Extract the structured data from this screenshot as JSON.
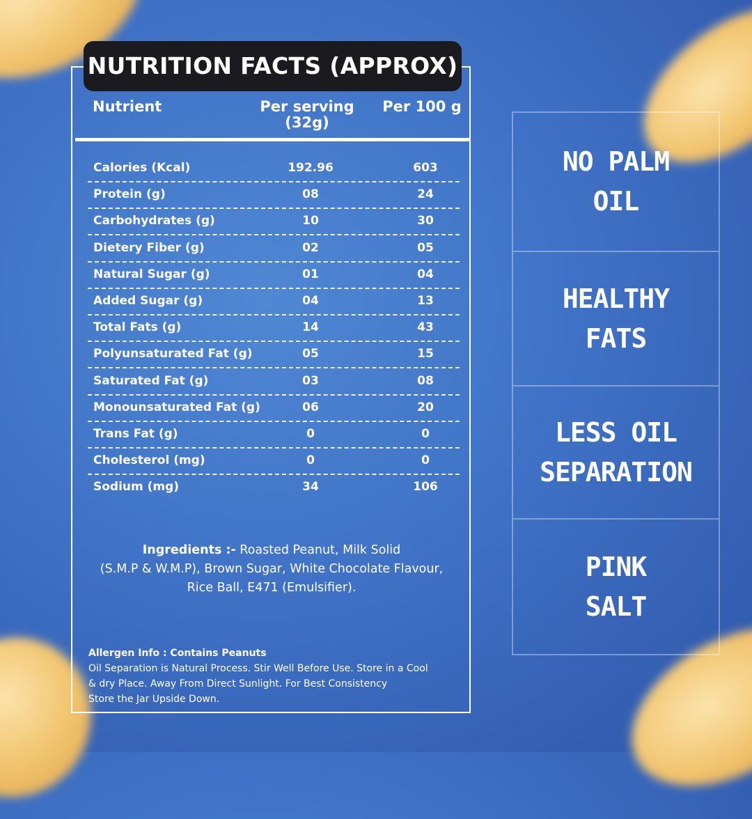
{
  "title": "NUTRITION FACTS (APPROX)",
  "table": {
    "headers": {
      "nutrient": "Nutrient",
      "per_serving_1": "Per serving",
      "per_serving_2": "(32g)",
      "per_100g": "Per 100 g"
    },
    "rows": [
      {
        "name": "Calories (Kcal)",
        "per_serving": "192.96",
        "per_100g": "603"
      },
      {
        "name": "Protein (g)",
        "per_serving": "08",
        "per_100g": "24"
      },
      {
        "name": "Carbohydrates (g)",
        "per_serving": "10",
        "per_100g": "30"
      },
      {
        "name": "Dietery Fiber (g)",
        "per_serving": "02",
        "per_100g": "05"
      },
      {
        "name": "Natural Sugar (g)",
        "per_serving": "01",
        "per_100g": "04"
      },
      {
        "name": "Added Sugar (g)",
        "per_serving": "04",
        "per_100g": "13"
      },
      {
        "name": "Total Fats (g)",
        "per_serving": "14",
        "per_100g": "43"
      },
      {
        "name": "Polyunsaturated Fat (g)",
        "per_serving": "05",
        "per_100g": "15"
      },
      {
        "name": "Saturated Fat (g)",
        "per_serving": "03",
        "per_100g": "08"
      },
      {
        "name": "Monounsaturated Fat (g)",
        "per_serving": "06",
        "per_100g": "20"
      },
      {
        "name": "Trans Fat (g)",
        "per_serving": "0",
        "per_100g": "0"
      },
      {
        "name": "Cholesterol (mg)",
        "per_serving": "0",
        "per_100g": "0"
      },
      {
        "name": "Sodium (mg)",
        "per_serving": "34",
        "per_100g": "106"
      }
    ]
  },
  "ingredients": {
    "label": "Ingredients :-",
    "line1": " Roasted Peanut, Milk Solid",
    "line2": "(S.M.P & W.M.P), Brown Sugar, White Chocolate Flavour,",
    "line3": "Rice Ball, E471 (Emulsifier)."
  },
  "allergen": {
    "heading": "Allergen Info : Contains Peanuts",
    "line1": "Oil Separation is Natural Process. Stir Well Before Use. Store in a Cool",
    "line2": "& dry Place. Away From Direct Sunlight. For Best Consistency",
    "line3": "Store the Jar Upside Down."
  },
  "features": [
    {
      "line1": "NO PALM",
      "line2": "OIL"
    },
    {
      "line1": "HEALTHY",
      "line2": "FATS"
    },
    {
      "line1": "LESS OIL",
      "line2": "SEPARATION"
    },
    {
      "line1": "PINK",
      "line2": "SALT"
    }
  ],
  "colors": {
    "background": "#3f72c6",
    "title_box": "#1b1b1f",
    "peanut": "#f1c46f",
    "text": "#ffffff"
  }
}
